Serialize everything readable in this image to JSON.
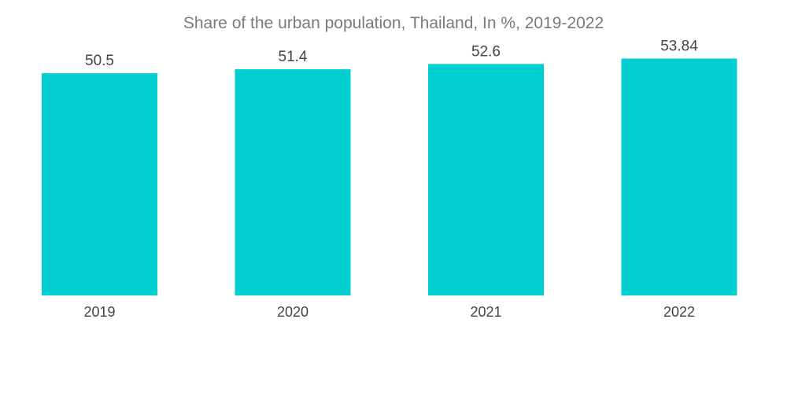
{
  "title": "Share of the urban population, Thailand, In %, 2019-2022",
  "colors": {
    "bar": "#00CED1",
    "title": "#7a7a7a",
    "label": "#444444"
  },
  "chart_data": {
    "type": "bar",
    "title": "Share of the urban population, Thailand, In %, 2019-2022",
    "categories": [
      "2019",
      "2020",
      "2021",
      "2022"
    ],
    "values": [
      50.5,
      51.4,
      52.6,
      53.84
    ],
    "value_labels": [
      "50.5",
      "51.4",
      "52.6",
      "53.84"
    ],
    "xlabel": "",
    "ylabel": "",
    "ylim": [
      0,
      60
    ],
    "grid": false,
    "legend": "none"
  }
}
